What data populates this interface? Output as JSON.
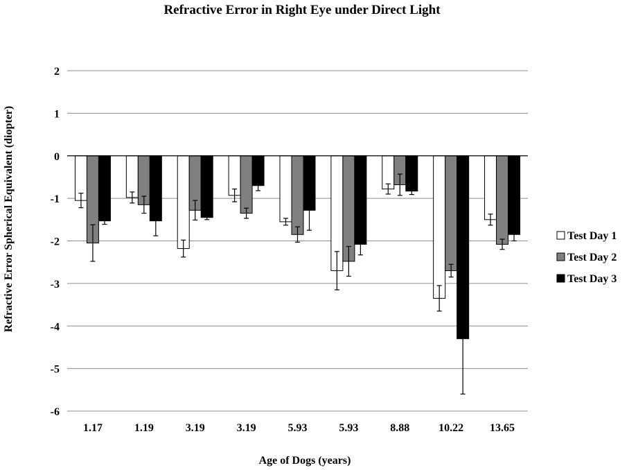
{
  "chart_data": {
    "type": "bar",
    "title": "Refractive Error in Right Eye under Direct Light",
    "xlabel": "Age of Dogs (years)",
    "ylabel": "Refractive Error Spherical Equivalent (diopter)",
    "categories": [
      "1.17",
      "1.19",
      "3.19",
      "3.19",
      "5.93",
      "5.93",
      "8.88",
      "10.22",
      "13.65"
    ],
    "ylim": [
      -6,
      2
    ],
    "yticks": [
      2,
      1,
      0,
      -1,
      -2,
      -3,
      -4,
      -5,
      -6
    ],
    "grid": true,
    "legend_position": "right",
    "series": [
      {
        "name": "Test Day 1",
        "color": "#ffffff",
        "values": [
          -1.05,
          -0.98,
          -2.18,
          -0.93,
          -1.55,
          -2.7,
          -0.78,
          -3.35,
          -1.5
        ],
        "errors": [
          0.17,
          0.13,
          0.2,
          0.15,
          0.08,
          0.45,
          0.12,
          0.3,
          0.13
        ]
      },
      {
        "name": "Test Day 2",
        "color": "#808080",
        "values": [
          -2.05,
          -1.15,
          -1.28,
          -1.35,
          -1.85,
          -2.48,
          -0.68,
          -2.7,
          -2.08
        ],
        "errors": [
          0.43,
          0.2,
          0.23,
          0.12,
          0.18,
          0.35,
          0.25,
          0.15,
          0.12
        ]
      },
      {
        "name": "Test Day 3",
        "color": "#000000",
        "values": [
          -1.53,
          -1.53,
          -1.45,
          -0.7,
          -1.28,
          -2.08,
          -0.83,
          -4.3,
          -1.85
        ],
        "errors": [
          0.08,
          0.35,
          0.05,
          0.12,
          0.47,
          0.25,
          0.08,
          1.3,
          0.15
        ]
      }
    ]
  }
}
